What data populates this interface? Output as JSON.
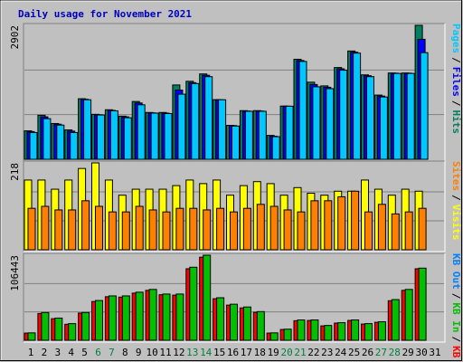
{
  "title": "Daily usage for November 2021",
  "legend_separator": "/",
  "chart_data": [
    {
      "type": "bar",
      "ylim": [
        0,
        2902
      ],
      "yticks": [
        2902
      ],
      "series": [
        {
          "name": "Hits",
          "color": "#008060",
          "values": [
            616,
            954,
            775,
            636,
            1312,
            974,
            1073,
            934,
            1252,
            1014,
            1014,
            1610,
            1690,
            1849,
            1292,
            735,
            1054,
            1054,
            517,
            1153,
            2167,
            1670,
            1590,
            1988,
            2346,
            1829,
            1391,
            1869,
            1869,
            2902,
            0
          ]
        },
        {
          "name": "Files",
          "color": "#0000ff",
          "values": [
            600,
            920,
            760,
            610,
            1300,
            965,
            1060,
            920,
            1220,
            1005,
            1000,
            1500,
            1660,
            1820,
            1290,
            730,
            1045,
            1045,
            500,
            1150,
            2140,
            1620,
            1560,
            1960,
            2320,
            1810,
            1370,
            1865,
            1865,
            2600,
            0
          ]
        },
        {
          "name": "Pages",
          "color": "#00c8ff",
          "values": [
            580,
            880,
            740,
            580,
            1290,
            960,
            1050,
            900,
            1180,
            1000,
            990,
            1410,
            1640,
            1790,
            1290,
            720,
            1040,
            1040,
            490,
            1150,
            2120,
            1570,
            1530,
            1930,
            2300,
            1790,
            1350,
            1860,
            1860,
            2310,
            0
          ]
        }
      ]
    },
    {
      "type": "bar",
      "ylim": [
        0,
        218
      ],
      "yticks": [
        218
      ],
      "series": [
        {
          "name": "Visits",
          "color": "#ffff00",
          "values": [
            175,
            175,
            152,
            175,
            204,
            218,
            175,
            137,
            152,
            152,
            152,
            161,
            175,
            166,
            175,
            137,
            161,
            171,
            166,
            137,
            156,
            142,
            137,
            147,
            147,
            175,
            152,
            137,
            152,
            147,
            0
          ]
        },
        {
          "name": "Sites",
          "color": "#ff8000",
          "values": [
            104,
            109,
            100,
            100,
            123,
            109,
            95,
            95,
            109,
            100,
            95,
            104,
            104,
            100,
            104,
            95,
            104,
            114,
            109,
            100,
            95,
            123,
            123,
            133,
            147,
            95,
            114,
            90,
            95,
            104,
            0
          ]
        }
      ]
    },
    {
      "type": "bar",
      "ylim": [
        0,
        106443
      ],
      "yticks": [
        106443
      ],
      "categories": [
        "1",
        "2",
        "3",
        "4",
        "5",
        "6",
        "7",
        "8",
        "9",
        "10",
        "11",
        "12",
        "13",
        "14",
        "15",
        "16",
        "17",
        "18",
        "19",
        "20",
        "21",
        "22",
        "23",
        "24",
        "25",
        "26",
        "27",
        "28",
        "29",
        "30",
        "31"
      ],
      "category_colors": [
        "#000000",
        "#000000",
        "#000000",
        "#000000",
        "#000000",
        "#008040",
        "#008040",
        "#000000",
        "#000000",
        "#000000",
        "#000000",
        "#000000",
        "#008040",
        "#008040",
        "#000000",
        "#000000",
        "#000000",
        "#000000",
        "#000000",
        "#008040",
        "#008040",
        "#000000",
        "#000000",
        "#000000",
        "#000000",
        "#000000",
        "#008040",
        "#008040",
        "#000000",
        "#000000",
        "#000000"
      ],
      "series": [
        {
          "name": "KB F",
          "color": "#ff0000",
          "values": [
            9000,
            33500,
            27000,
            20000,
            34000,
            48500,
            54500,
            54000,
            59000,
            62500,
            57000,
            56500,
            89500,
            104000,
            52000,
            44000,
            40500,
            35000,
            9000,
            13500,
            24500,
            24800,
            18000,
            21500,
            24800,
            20300,
            22500,
            49500,
            62500,
            89500,
            0
          ]
        },
        {
          "name": "KB In",
          "color": "#00c000",
          "values": [
            9256,
            34710,
            27768,
            20826,
            34710,
            49751,
            55536,
            55536,
            60164,
            63637,
            57849,
            57849,
            91404,
            106443,
            53221,
            45122,
            41652,
            35867,
            9256,
            13884,
            25454,
            25454,
            18512,
            21983,
            25454,
            20826,
            23140,
            50907,
            63637,
            90247,
            0
          ]
        },
        {
          "name": "KB Out",
          "color": "#0080ff",
          "values": [
            null,
            null,
            null,
            null,
            null,
            null,
            null,
            null,
            null,
            null,
            null,
            null,
            null,
            null,
            null,
            null,
            null,
            null,
            null,
            null,
            null,
            null,
            null,
            null,
            null,
            null,
            null,
            null,
            null,
            null,
            null
          ]
        }
      ]
    }
  ]
}
